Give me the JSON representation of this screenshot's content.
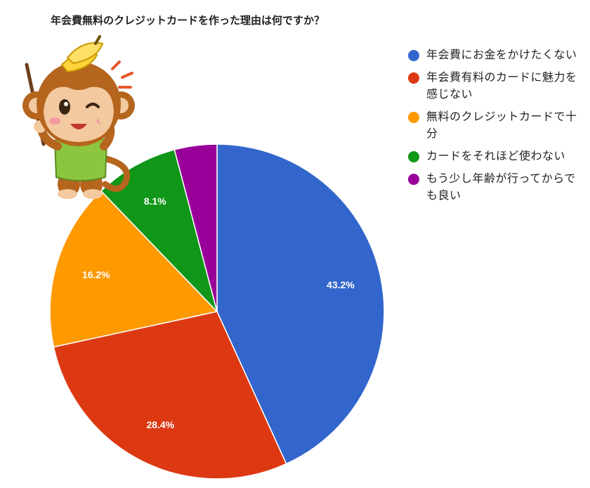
{
  "chart_data": {
    "type": "pie",
    "title": "年会費無料のクレジットカードを作った理由は何ですか？",
    "legend_position": "right",
    "slices": [
      {
        "label": "年会費にお金をかけたくない",
        "value": 43.2,
        "display": "43.2%",
        "color": "#3366cc"
      },
      {
        "label": "年会費有料のカードに魅力を感じない",
        "value": 28.4,
        "display": "28.4%",
        "color": "#dc3912"
      },
      {
        "label": "無料のクレジットカードで十分",
        "value": 16.2,
        "display": "16.2%",
        "color": "#ff9900"
      },
      {
        "label": "カードをそれほど使わない",
        "value": 8.1,
        "display": "8.1%",
        "color": "#109618"
      },
      {
        "label": "もう少し年齢が行ってからでも良い",
        "value": 4.1,
        "display": "",
        "color": "#990099"
      }
    ]
  }
}
